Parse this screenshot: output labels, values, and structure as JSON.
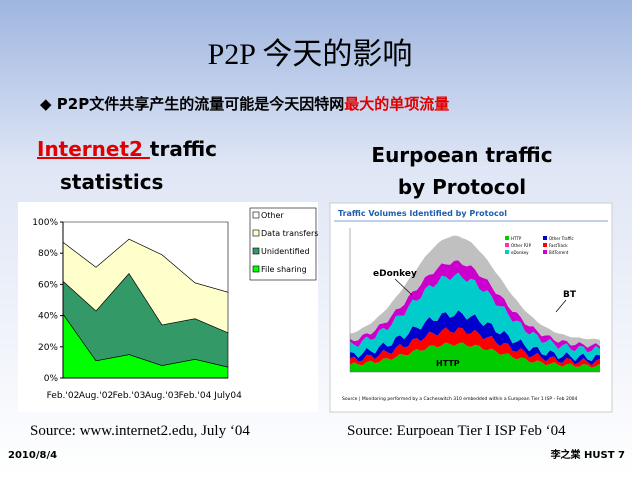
{
  "title": "P2P 今天的影响",
  "bullet": {
    "text": "P2P文件共享产生的流量可能是今天因特网",
    "highlight": "最大的单项流量"
  },
  "left": {
    "heading": {
      "highlight": "Internet2 ",
      "rest": "traffic",
      "line2": "statistics"
    },
    "source": "Source: www.internet2.edu, July ‘04",
    "chart_data": {
      "type": "area",
      "stacked": true,
      "categories": [
        "Feb.'02",
        "Aug.'02",
        "Feb.'03",
        "Aug.'03",
        "Feb.'04",
        "July04"
      ],
      "series": [
        {
          "name": "File sharing",
          "color": "#00ff00",
          "values": [
            41,
            11,
            15,
            8,
            12,
            7
          ]
        },
        {
          "name": "Unidentified",
          "color": "#339966",
          "values": [
            21,
            32,
            52,
            26,
            26,
            22
          ]
        },
        {
          "name": "Data transfers",
          "color": "#ffffcc",
          "values": [
            25,
            28,
            22,
            45,
            23,
            26
          ]
        },
        {
          "name": "Other",
          "color": "#ffffff",
          "values": [
            13,
            29,
            11,
            21,
            39,
            45
          ]
        }
      ],
      "ylim": [
        0,
        100
      ],
      "yticks": [
        {
          "value": 0,
          "label": "0%"
        },
        {
          "value": 20,
          "label": "20%"
        },
        {
          "value": 40,
          "label": "40%"
        },
        {
          "value": 60,
          "label": "60%"
        },
        {
          "value": 80,
          "label": "80%"
        },
        {
          "value": 100,
          "label": "100%"
        }
      ],
      "legend": "top-right"
    }
  },
  "right": {
    "heading": {
      "line1": "Eurpoean traffic",
      "line2": "by Protocol"
    },
    "source": "Source: Eurpoean Tier I ISP Feb ‘04",
    "image": {
      "title": "Traffic Volumes Identified by Protocol",
      "legend": [
        "HTTP",
        "Other Traffic",
        "Other P2P",
        "FastTrack",
        "eDonkey",
        "BitTorrent"
      ],
      "labels": [
        "eDonkey",
        "BT",
        "HTTP"
      ],
      "caption": "Source | Monitoring performed by a Cacheswitch 310 embedded within a European Tier 1 ISP - Feb 2004"
    }
  },
  "footer": {
    "date": "2010/8/4",
    "author": "李之棠 HUST 7"
  }
}
